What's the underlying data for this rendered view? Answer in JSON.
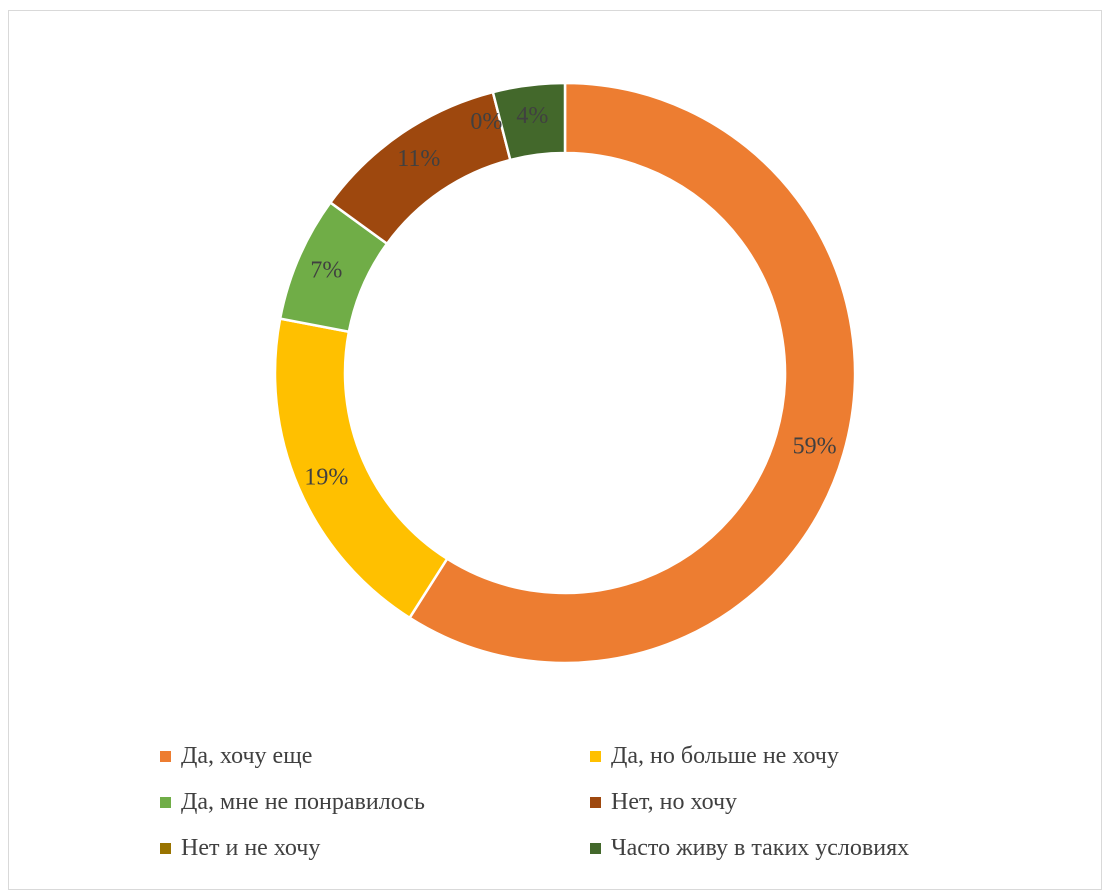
{
  "chart_data": {
    "type": "pie",
    "variant": "donut",
    "title": "",
    "legend_position": "bottom",
    "slices": [
      {
        "name": "Да, хочу еще",
        "value": 59,
        "label": "59%",
        "color": "#ED7D31"
      },
      {
        "name": "Да, но больше не хочу",
        "value": 19,
        "label": "19%",
        "color": "#FFC000"
      },
      {
        "name": "Да, мне не понравилось",
        "value": 7,
        "label": "7%",
        "color": "#70AD47"
      },
      {
        "name": "Нет, но хочу",
        "value": 11,
        "label": "11%",
        "color": "#9E480E"
      },
      {
        "name": "Нет и не хочу",
        "value": 0,
        "label": "0%",
        "color": "#997300"
      },
      {
        "name": "Часто живу в таких условиях",
        "value": 4,
        "label": "4%",
        "color": "#43682B"
      }
    ]
  }
}
